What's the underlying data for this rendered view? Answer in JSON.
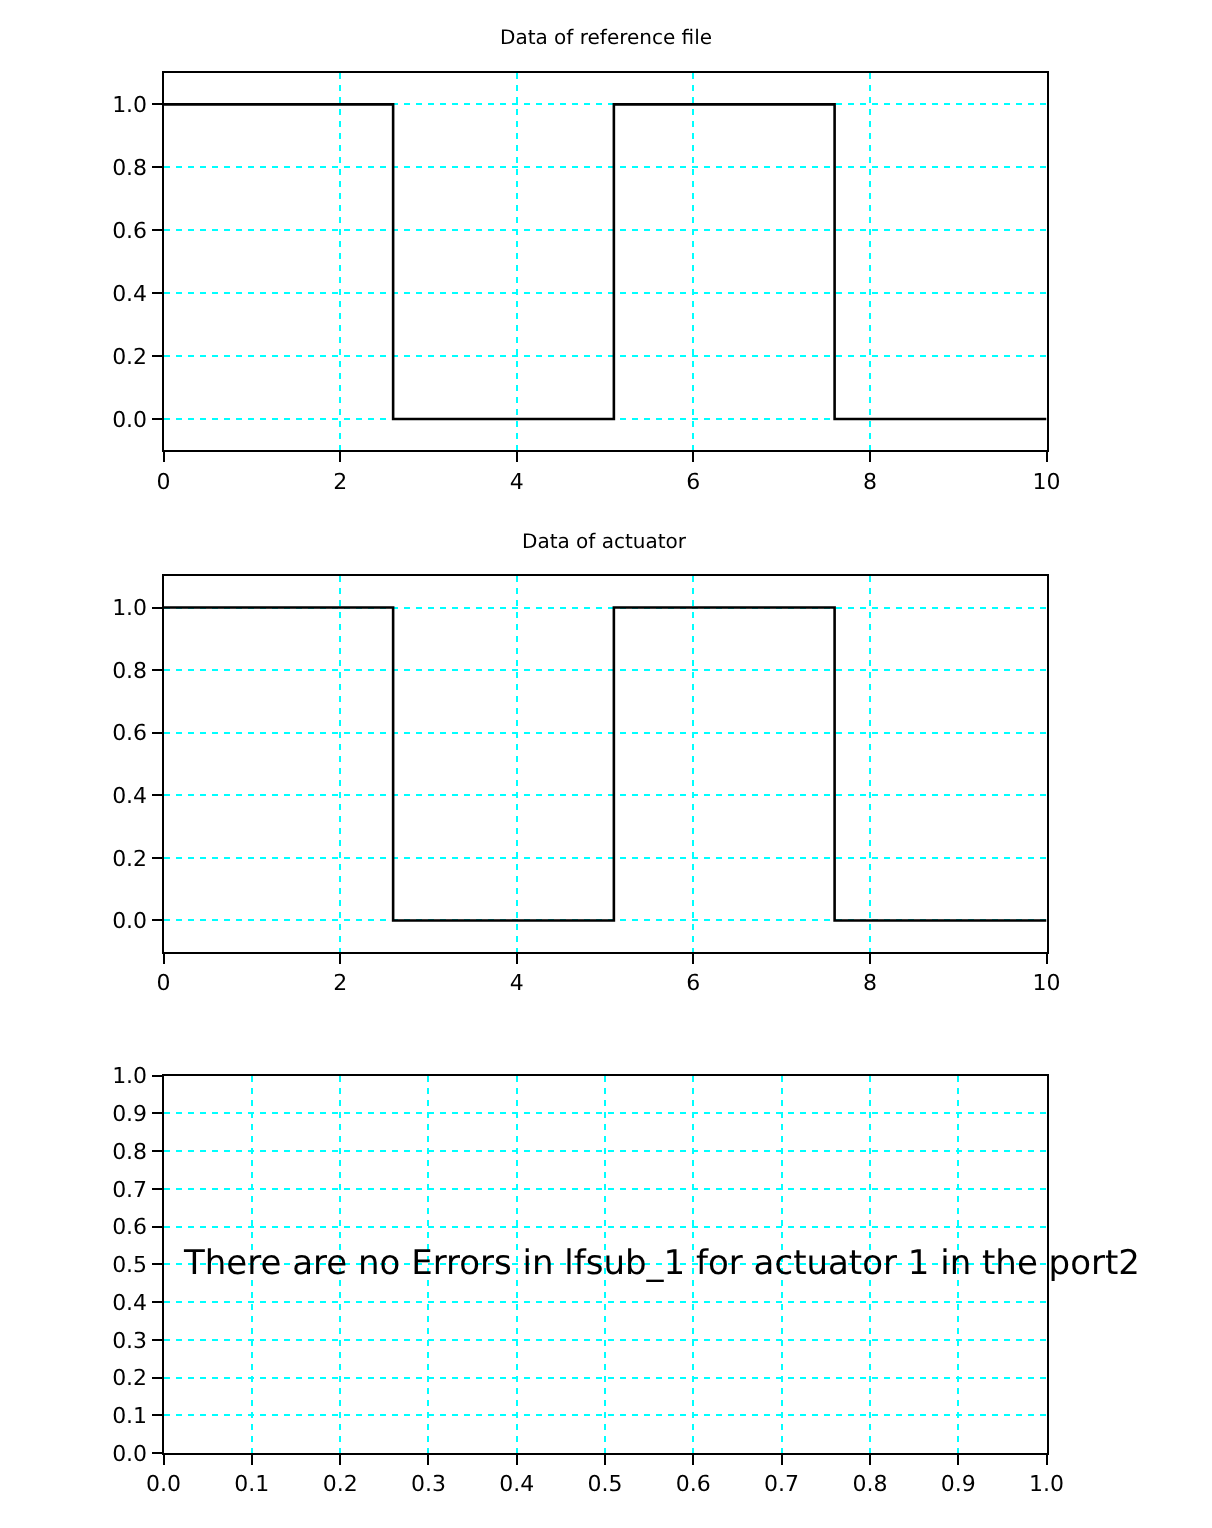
{
  "chart_data": [
    {
      "type": "step",
      "title": "Data of reference file",
      "x": [
        0,
        2.6,
        5.1,
        7.6,
        10
      ],
      "series": [
        {
          "color": "#000000",
          "values": [
            1,
            0,
            1,
            0,
            0
          ]
        }
      ],
      "xlim": [
        0,
        10
      ],
      "ylim": [
        -0.1,
        1.1
      ],
      "xticks": [
        0,
        2,
        4,
        6,
        8,
        10
      ],
      "yticks": [
        {
          "value": 0,
          "label": "0.0"
        },
        {
          "value": 0.2,
          "label": "0.2"
        },
        {
          "value": 0.4,
          "label": "0.4"
        },
        {
          "value": 0.6,
          "label": "0.6"
        },
        {
          "value": 0.8,
          "label": "0.8"
        },
        {
          "value": 1,
          "label": "1.0"
        }
      ],
      "grid": true,
      "marker": "none",
      "line_style": "solid"
    },
    {
      "type": "step",
      "title": "Data of actuator",
      "x": [
        0,
        2.6,
        5.1,
        7.6,
        10
      ],
      "series": [
        {
          "color": "#000000",
          "values": [
            1,
            0,
            1,
            0,
            0
          ]
        }
      ],
      "xlim": [
        0,
        10
      ],
      "ylim": [
        -0.1,
        1.1
      ],
      "xticks": [
        0,
        2,
        4,
        6,
        8,
        10
      ],
      "yticks": [
        {
          "value": 0,
          "label": "0.0"
        },
        {
          "value": 0.2,
          "label": "0.2"
        },
        {
          "value": 0.4,
          "label": "0.4"
        },
        {
          "value": 0.6,
          "label": "0.6"
        },
        {
          "value": 0.8,
          "label": "0.8"
        },
        {
          "value": 1,
          "label": "1.0"
        }
      ],
      "grid": true,
      "marker": "none",
      "line_style": "solid"
    },
    {
      "type": "line",
      "annotations": [
        "There are no Errors in lfsub_1 for actuator 1 in the port2"
      ],
      "xlim": [
        0,
        1
      ],
      "ylim": [
        0,
        1
      ],
      "xticks": [
        {
          "value": 0,
          "label": "0.0"
        },
        {
          "value": 0.1,
          "label": "0.1"
        },
        {
          "value": 0.2,
          "label": "0.2"
        },
        {
          "value": 0.3,
          "label": "0.3"
        },
        {
          "value": 0.4,
          "label": "0.4"
        },
        {
          "value": 0.5,
          "label": "0.5"
        },
        {
          "value": 0.6,
          "label": "0.6"
        },
        {
          "value": 0.7,
          "label": "0.7"
        },
        {
          "value": 0.8,
          "label": "0.8"
        },
        {
          "value": 0.9,
          "label": "0.9"
        },
        {
          "value": 1,
          "label": "1.0"
        }
      ],
      "yticks": [
        {
          "value": 0,
          "label": "0.0"
        },
        {
          "value": 0.1,
          "label": "0.1"
        },
        {
          "value": 0.2,
          "label": "0.2"
        },
        {
          "value": 0.3,
          "label": "0.3"
        },
        {
          "value": 0.4,
          "label": "0.4"
        },
        {
          "value": 0.5,
          "label": "0.5"
        },
        {
          "value": 0.6,
          "label": "0.6"
        },
        {
          "value": 0.7,
          "label": "0.7"
        },
        {
          "value": 0.8,
          "label": "0.8"
        },
        {
          "value": 0.9,
          "label": "0.9"
        },
        {
          "value": 1,
          "label": "1.0"
        }
      ],
      "grid": true
    }
  ]
}
